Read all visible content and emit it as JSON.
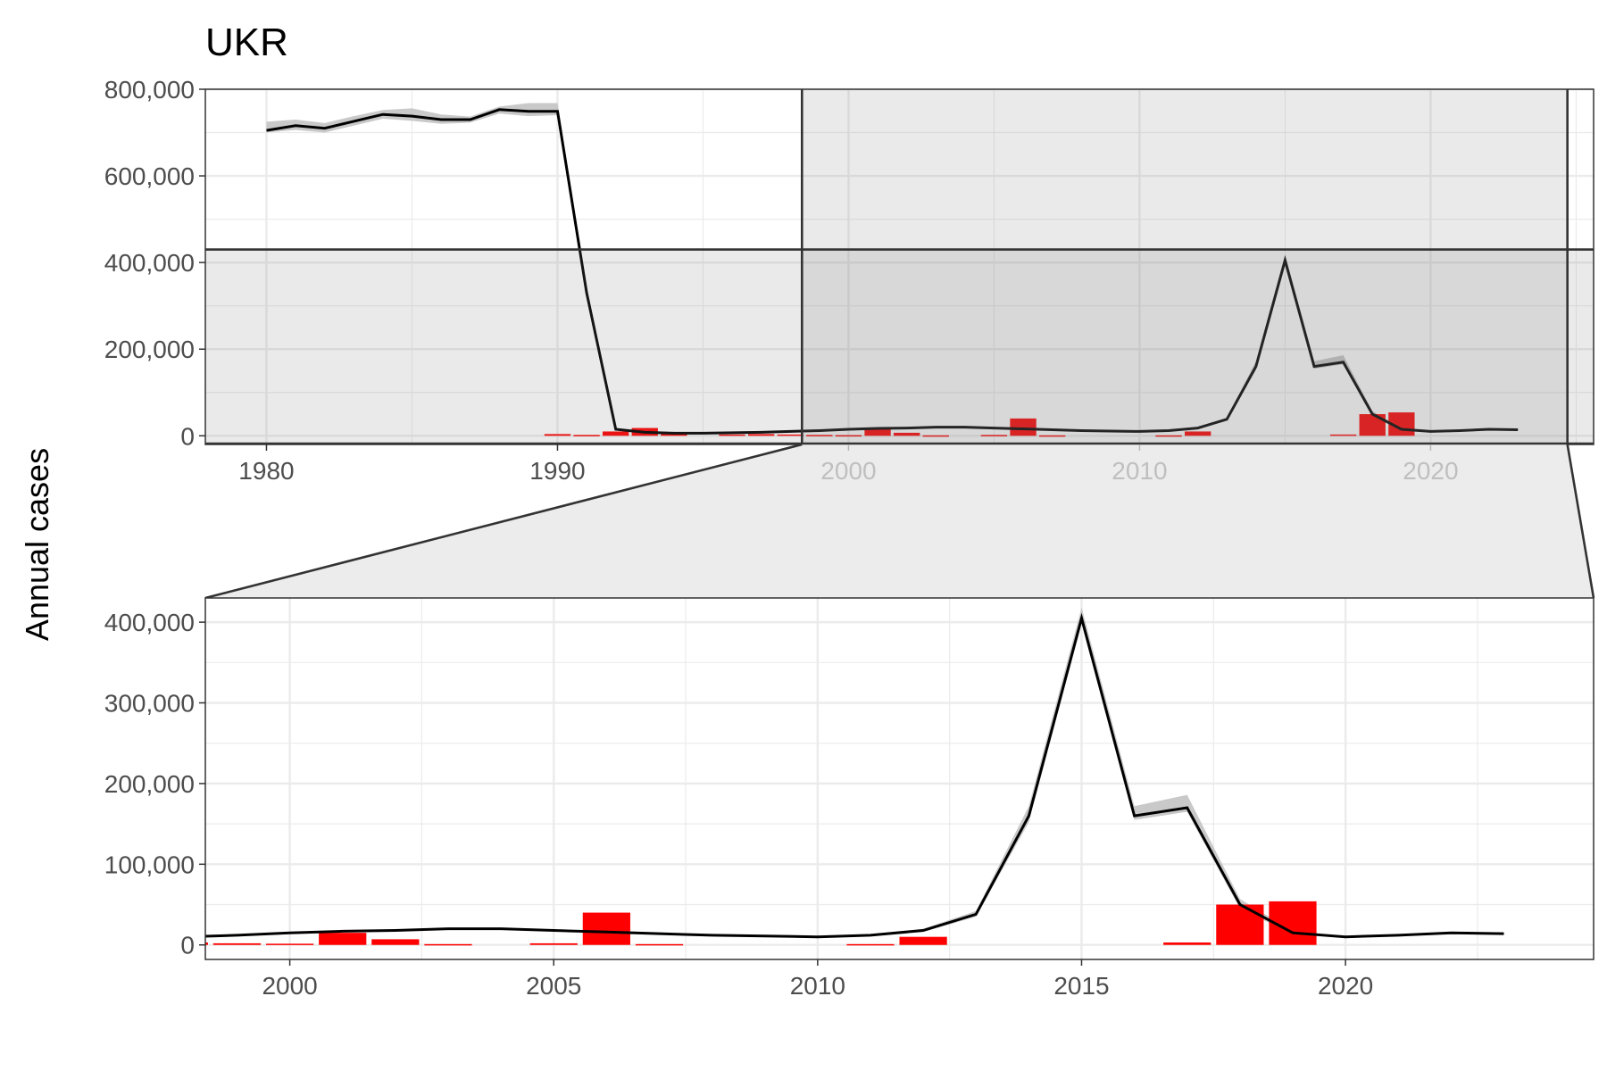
{
  "chart_data": {
    "type": "line",
    "title": "UKR",
    "ylabel": "Annual cases",
    "xlabel": "",
    "grid": true,
    "colors": {
      "line": "#000000",
      "band": "#bfbfbf",
      "bars": "#ff0000",
      "zoom_region": "#e5e5e5"
    },
    "main": {
      "xlim": [
        1977.9,
        2025.6
      ],
      "ylim": [
        -20000,
        800000
      ],
      "x_ticks": [
        "1980",
        "1990",
        "2000",
        "2010",
        "2020"
      ],
      "y_ticks": [
        "0",
        "200,000",
        "400,000",
        "600,000",
        "800,000"
      ]
    },
    "zoom": {
      "xlim": [
        1998.4,
        2024.7
      ],
      "ylim": [
        -18000,
        430000
      ],
      "x_ticks": [
        "2000",
        "2005",
        "2010",
        "2015",
        "2020"
      ],
      "y_ticks": [
        "0",
        "100,000",
        "200,000",
        "300,000",
        "400,000"
      ]
    },
    "series": [
      {
        "type": "line",
        "x": [
          1980,
          1981,
          1982,
          1983,
          1984,
          1985,
          1986,
          1987,
          1988,
          1989,
          1990,
          1991,
          1992,
          1993,
          1994,
          1995,
          1996,
          1997,
          1998,
          1999,
          2000,
          2001,
          2002,
          2003,
          2004,
          2005,
          2006,
          2007,
          2008,
          2009,
          2010,
          2011,
          2012,
          2013,
          2014,
          2015,
          2016,
          2017,
          2018,
          2019,
          2020,
          2021,
          2022,
          2023
        ],
        "y": [
          705000,
          716000,
          710000,
          726000,
          742000,
          738000,
          730000,
          730000,
          753000,
          749000,
          749000,
          330000,
          15000,
          8000,
          6000,
          6000,
          7000,
          8000,
          10000,
          12000,
          15000,
          17000,
          18000,
          20000,
          20000,
          18000,
          16000,
          14000,
          12000,
          11000,
          10000,
          12000,
          18000,
          38000,
          160000,
          405000,
          160000,
          170000,
          50000,
          15000,
          10000,
          12000,
          15000,
          14000
        ],
        "band_low": [
          700000,
          706000,
          700000,
          716000,
          732000,
          727000,
          720000,
          723000,
          744000,
          738000,
          740000,
          322000,
          13000,
          7000,
          5000,
          5000,
          6000,
          7000,
          9000,
          11000,
          14000,
          16000,
          17000,
          19000,
          19000,
          17000,
          15000,
          13000,
          11000,
          10000,
          9000,
          11000,
          16000,
          35000,
          152000,
          398000,
          155000,
          165000,
          45000,
          13000,
          9000,
          11000,
          14000,
          13000
        ],
        "band_high": [
          725000,
          730000,
          722000,
          738000,
          752000,
          756000,
          742000,
          737000,
          760000,
          768000,
          768000,
          338000,
          18000,
          10000,
          7000,
          7000,
          8000,
          9000,
          11000,
          13000,
          16000,
          18000,
          19000,
          21000,
          21000,
          19000,
          17000,
          15000,
          13000,
          12000,
          11000,
          13000,
          20000,
          42000,
          172000,
          418000,
          172000,
          186000,
          57000,
          17000,
          11000,
          13000,
          16000,
          15000
        ]
      },
      {
        "type": "bar",
        "x": [
          1990,
          1991,
          1992,
          1993,
          1994,
          1996,
          1997,
          1998,
          1999,
          2000,
          2001,
          2002,
          2003,
          2005,
          2006,
          2007,
          2011,
          2012,
          2017,
          2018,
          2019
        ],
        "y": [
          4000,
          2000,
          10000,
          18000,
          8000,
          3000,
          4000,
          3000,
          2000,
          1500,
          15000,
          7000,
          1000,
          2000,
          40000,
          1000,
          1000,
          10000,
          3000,
          50000,
          54000
        ]
      }
    ]
  }
}
